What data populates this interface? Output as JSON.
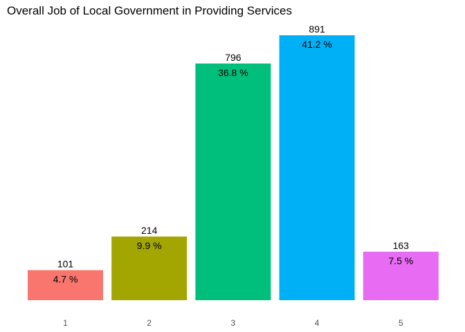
{
  "chart_data": {
    "type": "bar",
    "title": "Overall Job of Local Government in Providing Services",
    "xlabel": "",
    "ylabel": "",
    "categories": [
      "1",
      "2",
      "3",
      "4",
      "5"
    ],
    "values": [
      101,
      214,
      796,
      891,
      163
    ],
    "percent_labels": [
      "4.7 %",
      "9.9 %",
      "36.8 %",
      "41.2 %",
      "7.5 %"
    ],
    "colors": [
      "#F8766D",
      "#A3A500",
      "#00BF7D",
      "#00B0F6",
      "#E76BF3"
    ],
    "ylim": [
      0,
      891
    ],
    "grid": false,
    "legend": "none"
  }
}
